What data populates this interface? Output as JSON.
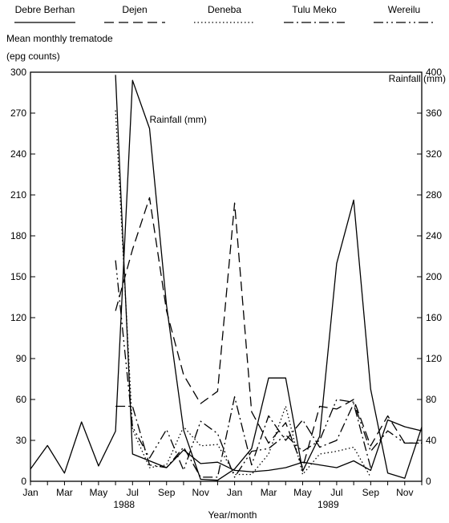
{
  "chart_data": {
    "type": "line",
    "title": "",
    "xlabel": "Year/month",
    "ylabel_left": [
      "Mean monthly trematode",
      "(epg counts)"
    ],
    "ylabel_right": "Rainfall (mm)",
    "ylim_left": [
      0,
      300
    ],
    "ylim_right": [
      0,
      400
    ],
    "yticks_left": [
      0,
      30,
      60,
      90,
      120,
      150,
      180,
      210,
      240,
      270,
      300
    ],
    "yticks_right": [
      0,
      40,
      80,
      120,
      160,
      200,
      240,
      280,
      320,
      360,
      400
    ],
    "x_month_index_range": [
      1,
      24
    ],
    "xtick_labels": [
      {
        "m": 1,
        "label": "Jan"
      },
      {
        "m": 3,
        "label": "Mar"
      },
      {
        "m": 5,
        "label": "May"
      },
      {
        "m": 7,
        "label": "Jul"
      },
      {
        "m": 9,
        "label": "Sep"
      },
      {
        "m": 11,
        "label": "Nov"
      },
      {
        "m": 13,
        "label": "Jan"
      },
      {
        "m": 15,
        "label": "Mar"
      },
      {
        "m": 17,
        "label": "May"
      },
      {
        "m": 19,
        "label": "Jul"
      },
      {
        "m": 21,
        "label": "Sep"
      },
      {
        "m": 23,
        "label": "Nov"
      }
    ],
    "year_labels": [
      {
        "m": 6.5,
        "label": "1988"
      },
      {
        "m": 18.5,
        "label": "1989"
      }
    ],
    "annotation": {
      "text": "Rainfall (mm)",
      "m": 8.0,
      "y_left": 263
    },
    "series": [
      {
        "name": "Rainfall (mm)",
        "axis": "right",
        "style": "solid",
        "x": [
          1,
          2,
          3,
          4,
          5,
          6,
          7,
          8,
          9,
          10,
          11,
          12,
          13,
          14,
          15,
          16,
          17,
          18,
          19,
          20,
          21,
          22,
          23,
          24
        ],
        "y": [
          12,
          35,
          8,
          58,
          15,
          49,
          392,
          345,
          172,
          50,
          2,
          1,
          12,
          32,
          101,
          101,
          10,
          44,
          213,
          275,
          90,
          8,
          3,
          53
        ]
      },
      {
        "name": "Debre Berhan",
        "axis": "left",
        "style": "solid",
        "x": [
          6,
          7,
          8,
          9,
          10,
          11,
          12,
          13,
          14,
          15,
          16,
          17,
          18,
          19,
          20,
          21,
          22,
          23,
          24
        ],
        "y": [
          298,
          20,
          15,
          10,
          23,
          13,
          14,
          8,
          7,
          8,
          10,
          14,
          12,
          10,
          15,
          8,
          45,
          40,
          37
        ]
      },
      {
        "name": "Dejen",
        "axis": "left",
        "style": "dashed",
        "x": [
          6,
          7,
          8,
          9,
          10,
          11,
          12,
          13,
          14,
          15,
          16,
          17,
          18,
          19,
          20,
          21,
          22,
          23,
          24
        ],
        "y": [
          125,
          170,
          208,
          125,
          78,
          57,
          66,
          204,
          51,
          28,
          43,
          10,
          55,
          53,
          60,
          26,
          48,
          28,
          28
        ]
      },
      {
        "name": "Deneba",
        "axis": "left",
        "style": "dotted",
        "x": [
          6,
          7,
          8,
          9,
          10,
          11,
          12,
          13,
          14,
          15,
          16,
          17,
          18,
          19,
          20,
          21
        ],
        "y": [
          272,
          38,
          10,
          12,
          40,
          26,
          27,
          5,
          5,
          20,
          55,
          5,
          20,
          22,
          25,
          3
        ]
      },
      {
        "name": "Tulu Meko",
        "axis": "left",
        "style": "dashdot",
        "x": [
          6,
          7,
          8,
          9,
          10,
          11,
          12,
          13,
          14,
          15,
          16,
          17,
          18,
          19,
          20,
          21
        ],
        "y": [
          55,
          55,
          12,
          10,
          25,
          3,
          3,
          62,
          12,
          48,
          30,
          45,
          25,
          30,
          57,
          10
        ]
      },
      {
        "name": "Wereilu",
        "axis": "left",
        "style": "dashdotdot",
        "x": [
          6,
          7,
          8,
          9,
          10,
          11,
          12,
          13,
          14,
          15,
          16,
          17,
          18,
          19,
          20,
          21,
          22,
          23,
          24
        ],
        "y": [
          162,
          40,
          17,
          38,
          8,
          44,
          35,
          3,
          22,
          24,
          34,
          22,
          30,
          60,
          58,
          22,
          37,
          28,
          28
        ]
      }
    ]
  }
}
